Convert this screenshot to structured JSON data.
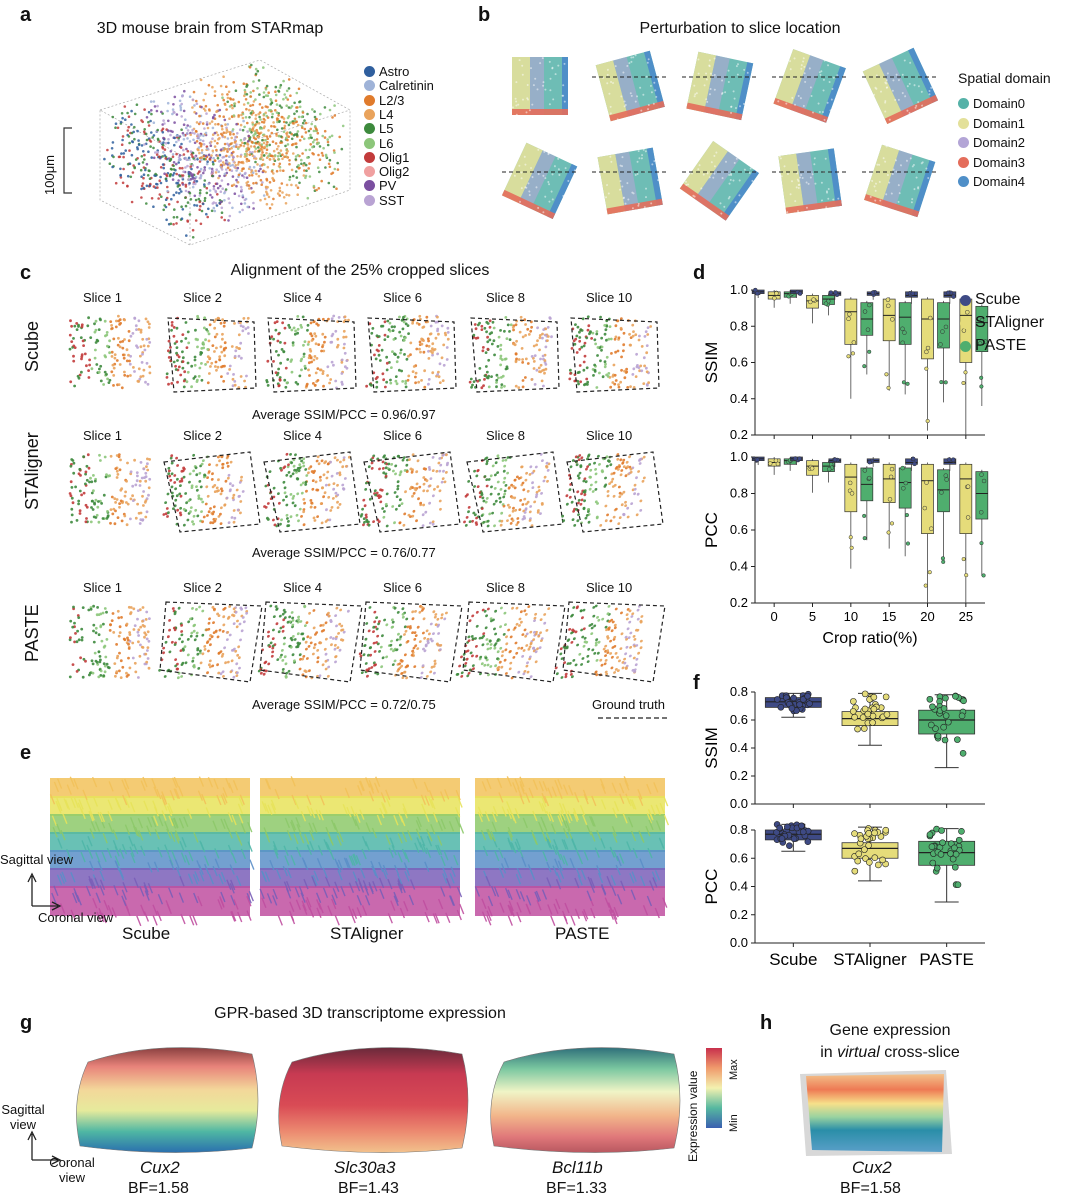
{
  "panels": {
    "a": {
      "label": "a",
      "title": "3D mouse brain from STARmap",
      "scale_label": "100μm",
      "legend": [
        {
          "name": "Astro",
          "color": "#2f5f9e"
        },
        {
          "name": "Calretinin",
          "color": "#9fb3d8"
        },
        {
          "name": "L2/3",
          "color": "#e07b2c"
        },
        {
          "name": "L4",
          "color": "#e9a35c"
        },
        {
          "name": "L5",
          "color": "#3d8a3d"
        },
        {
          "name": "L6",
          "color": "#8cc67a"
        },
        {
          "name": "Olig1",
          "color": "#c23b3b"
        },
        {
          "name": "Olig2",
          "color": "#f0a0a0"
        },
        {
          "name": "PV",
          "color": "#7b4fa0"
        },
        {
          "name": "SST",
          "color": "#b9a3d3"
        }
      ]
    },
    "b": {
      "label": "b",
      "title": "Perturbation to slice location",
      "legend_title": "Spatial domain",
      "legend": [
        {
          "name": "Domain0",
          "color": "#55b2a8"
        },
        {
          "name": "Domain1",
          "color": "#e3e09a"
        },
        {
          "name": "Domain2",
          "color": "#b3a5d6"
        },
        {
          "name": "Domain3",
          "color": "#e46d5b"
        },
        {
          "name": "Domain4",
          "color": "#4f8fc8"
        }
      ]
    },
    "c": {
      "label": "c",
      "title": "Alignment of the 25% cropped slices",
      "slice_names": [
        "Slice 1",
        "Slice 2",
        "Slice 4",
        "Slice 6",
        "Slice 8",
        "Slice 10"
      ],
      "rows": [
        {
          "method": "Scube",
          "caption": "Average SSIM/PCC = 0.96/0.97"
        },
        {
          "method": "STAligner",
          "caption": "Average SSIM/PCC = 0.76/0.77"
        },
        {
          "method": "PASTE",
          "caption": "Average SSIM/PCC = 0.72/0.75"
        }
      ],
      "ground_truth": "Ground truth"
    },
    "d": {
      "label": "d",
      "legend": [
        {
          "name": "Scube",
          "color": "#3e4a85"
        },
        {
          "name": "STAligner",
          "color": "#e5dc7a"
        },
        {
          "name": "PASTE",
          "color": "#4fae6e"
        }
      ]
    },
    "e": {
      "label": "e",
      "methods": [
        "Scube",
        "STAligner",
        "PASTE"
      ],
      "axis_up": "Sagittal view",
      "axis_right": "Coronal view"
    },
    "f": {
      "label": "f"
    },
    "g": {
      "label": "g",
      "title": "GPR-based 3D transcriptome expression",
      "colorbar_label": "Expression value",
      "cb_max": "Max",
      "cb_min": "Min",
      "genes": [
        {
          "gene": "Cux2",
          "bf": "BF=1.58"
        },
        {
          "gene": "Slc30a3",
          "bf": "BF=1.43"
        },
        {
          "gene": "Bcl11b",
          "bf": "BF=1.33"
        }
      ],
      "axis_up": "Sagittal view",
      "axis_right": "Coronal view"
    },
    "h": {
      "label": "h",
      "title_line1": "Gene expression",
      "title_pre": "in ",
      "title_italic": "virtual",
      "title_post": " cross-slice",
      "gene": "Cux2",
      "bf": "BF=1.58"
    }
  },
  "chart_data": [
    {
      "type": "box",
      "panel": "d",
      "ylabel": "SSIM",
      "xlabel": "Crop ratio(%)",
      "categories": [
        "0",
        "5",
        "10",
        "15",
        "20",
        "25"
      ],
      "ylim": [
        0.2,
        1.0
      ],
      "yticks": [
        "0.2",
        "0.4",
        "0.6",
        "0.8",
        "1.0"
      ],
      "series": [
        {
          "name": "Scube",
          "color": "#3e4a85",
          "medians": [
            0.99,
            0.99,
            0.98,
            0.98,
            0.97,
            0.97
          ],
          "q1": [
            0.98,
            0.98,
            0.97,
            0.97,
            0.96,
            0.96
          ],
          "q3": [
            1.0,
            1.0,
            0.99,
            0.99,
            0.99,
            0.99
          ]
        },
        {
          "name": "STAligner",
          "color": "#e5dc7a",
          "medians": [
            0.97,
            0.94,
            0.88,
            0.86,
            0.84,
            0.86
          ],
          "q1": [
            0.95,
            0.9,
            0.7,
            0.72,
            0.62,
            0.6
          ],
          "q3": [
            0.99,
            0.97,
            0.95,
            0.95,
            0.95,
            0.95
          ]
        },
        {
          "name": "PASTE",
          "color": "#4fae6e",
          "medians": [
            0.98,
            0.95,
            0.84,
            0.85,
            0.84,
            0.82
          ],
          "q1": [
            0.96,
            0.92,
            0.75,
            0.7,
            0.68,
            0.66
          ],
          "q3": [
            0.99,
            0.97,
            0.93,
            0.93,
            0.93,
            0.91
          ]
        }
      ]
    },
    {
      "type": "box",
      "panel": "d",
      "ylabel": "PCC",
      "xlabel": "Crop ratio(%)",
      "categories": [
        "0",
        "5",
        "10",
        "15",
        "20",
        "25"
      ],
      "ylim": [
        0.2,
        1.0
      ],
      "yticks": [
        "0.2",
        "0.4",
        "0.6",
        "0.8",
        "1.0"
      ],
      "series": [
        {
          "name": "Scube",
          "color": "#3e4a85",
          "medians": [
            0.99,
            0.99,
            0.98,
            0.98,
            0.97,
            0.97
          ],
          "q1": [
            0.98,
            0.98,
            0.97,
            0.97,
            0.96,
            0.96
          ],
          "q3": [
            1.0,
            1.0,
            0.99,
            0.99,
            0.99,
            0.99
          ]
        },
        {
          "name": "STAligner",
          "color": "#e5dc7a",
          "medians": [
            0.97,
            0.95,
            0.89,
            0.88,
            0.87,
            0.88
          ],
          "q1": [
            0.95,
            0.9,
            0.7,
            0.75,
            0.58,
            0.58
          ],
          "q3": [
            0.99,
            0.98,
            0.96,
            0.96,
            0.96,
            0.96
          ]
        },
        {
          "name": "PASTE",
          "color": "#4fae6e",
          "medians": [
            0.98,
            0.95,
            0.85,
            0.86,
            0.82,
            0.8
          ],
          "q1": [
            0.96,
            0.92,
            0.76,
            0.72,
            0.7,
            0.66
          ],
          "q3": [
            0.99,
            0.97,
            0.94,
            0.94,
            0.93,
            0.92
          ]
        }
      ]
    },
    {
      "type": "box",
      "panel": "f",
      "ylabel": "SSIM",
      "categories": [
        "Scube",
        "STAligner",
        "PASTE"
      ],
      "ylim": [
        0.0,
        0.8
      ],
      "yticks": [
        "0.0",
        "0.2",
        "0.4",
        "0.6",
        "0.8"
      ],
      "series": [
        {
          "name": "Scube",
          "color": "#3e4a85",
          "median": 0.73,
          "q1": 0.69,
          "q3": 0.76,
          "wlo": 0.62,
          "whi": 0.79
        },
        {
          "name": "STAligner",
          "color": "#e5dc7a",
          "median": 0.61,
          "q1": 0.56,
          "q3": 0.66,
          "wlo": 0.42,
          "whi": 0.79
        },
        {
          "name": "PASTE",
          "color": "#4fae6e",
          "median": 0.6,
          "q1": 0.5,
          "q3": 0.67,
          "wlo": 0.26,
          "whi": 0.78
        }
      ]
    },
    {
      "type": "box",
      "panel": "f",
      "ylabel": "PCC",
      "xlabel": "",
      "categories": [
        "Scube",
        "STAligner",
        "PASTE"
      ],
      "ylim": [
        0.0,
        0.8
      ],
      "yticks": [
        "0.0",
        "0.2",
        "0.4",
        "0.6",
        "0.8"
      ],
      "series": [
        {
          "name": "Scube",
          "color": "#3e4a85",
          "median": 0.77,
          "q1": 0.73,
          "q3": 0.8,
          "wlo": 0.65,
          "whi": 0.84
        },
        {
          "name": "STAligner",
          "color": "#e5dc7a",
          "median": 0.67,
          "q1": 0.6,
          "q3": 0.71,
          "wlo": 0.44,
          "whi": 0.82
        },
        {
          "name": "PASTE",
          "color": "#4fae6e",
          "median": 0.64,
          "q1": 0.55,
          "q3": 0.72,
          "wlo": 0.29,
          "whi": 0.81
        }
      ]
    }
  ]
}
